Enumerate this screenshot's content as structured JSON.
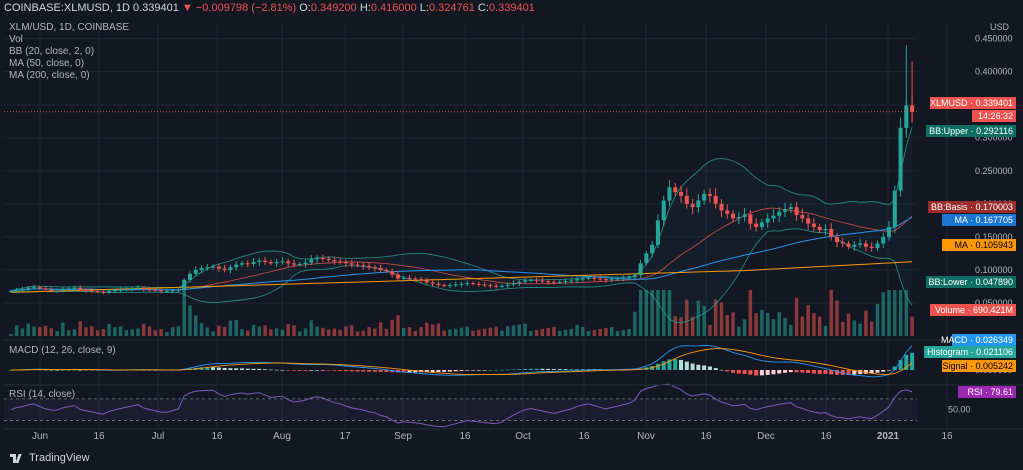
{
  "header": {
    "symbol": "COINBASE:XLMUSD, 1D",
    "last": "0.339401",
    "change": "▼ −0.009798 (−2.81%)",
    "o_label": "O:",
    "o_value": "0.349200",
    "h_label": "H:",
    "h_value": "0.416000",
    "l_label": "L:",
    "l_value": "0.324761",
    "c_label": "C:",
    "c_value": "0.339401"
  },
  "indicators": {
    "title": "XLM/USD, 1D, COINBASE",
    "vol": "Vol",
    "bb": "BB (20, close, 2, 0)",
    "ma50": "MA (50, close, 0)",
    "ma200": "MA (200, close, 0)",
    "macd": "MACD (12, 26, close, 9)",
    "rsi": "RSI (14, close)"
  },
  "branding": "TradingView",
  "colors": {
    "background": "#131722",
    "up": "#26a69a",
    "down": "#ef5350",
    "bb_basis": "#ef5350",
    "bb_band": "#26a69a",
    "ma50": "#2196f3",
    "ma200": "#ff9800",
    "rsi": "#7e57c2",
    "macd_line": "#2196f3",
    "signal_line": "#ff9800"
  },
  "chart_data": [
    {
      "type": "candlestick",
      "name": "price",
      "currency": "USD",
      "x_ticks": [
        "Jun",
        "16",
        "Jul",
        "16",
        "Aug",
        "17",
        "Sep",
        "16",
        "Oct",
        "16",
        "Nov",
        "16",
        "Dec",
        "16",
        "2021",
        "16"
      ],
      "y_ticks": [
        "0.450000",
        "0.400000",
        "0.350000",
        "0.300000",
        "0.250000",
        "0.200000",
        "0.150000",
        "0.100000",
        "0.050000"
      ],
      "ylim": [
        0.0,
        0.46
      ],
      "grid": true,
      "close_series": [
        0.068,
        0.07,
        0.071,
        0.073,
        0.074,
        0.072,
        0.07,
        0.069,
        0.069,
        0.071,
        0.072,
        0.073,
        0.07,
        0.069,
        0.068,
        0.067,
        0.066,
        0.068,
        0.069,
        0.07,
        0.071,
        0.072,
        0.073,
        0.071,
        0.07,
        0.069,
        0.068,
        0.068,
        0.069,
        0.07,
        0.085,
        0.094,
        0.1,
        0.103,
        0.104,
        0.105,
        0.102,
        0.1,
        0.104,
        0.108,
        0.11,
        0.109,
        0.112,
        0.114,
        0.112,
        0.11,
        0.112,
        0.113,
        0.11,
        0.108,
        0.109,
        0.111,
        0.116,
        0.118,
        0.117,
        0.115,
        0.113,
        0.112,
        0.11,
        0.108,
        0.107,
        0.106,
        0.104,
        0.103,
        0.1,
        0.098,
        0.093,
        0.087,
        0.088,
        0.087,
        0.086,
        0.084,
        0.081,
        0.079,
        0.077,
        0.076,
        0.077,
        0.078,
        0.079,
        0.08,
        0.079,
        0.078,
        0.077,
        0.076,
        0.075,
        0.076,
        0.078,
        0.08,
        0.082,
        0.084,
        0.085,
        0.084,
        0.083,
        0.082,
        0.081,
        0.082,
        0.083,
        0.084,
        0.086,
        0.087,
        0.088,
        0.087,
        0.086,
        0.085,
        0.086,
        0.087,
        0.088,
        0.089,
        0.092,
        0.11,
        0.125,
        0.138,
        0.175,
        0.205,
        0.225,
        0.218,
        0.212,
        0.2,
        0.195,
        0.205,
        0.215,
        0.212,
        0.2,
        0.19,
        0.185,
        0.178,
        0.18,
        0.184,
        0.17,
        0.165,
        0.172,
        0.178,
        0.182,
        0.188,
        0.192,
        0.195,
        0.183,
        0.178,
        0.17,
        0.165,
        0.16,
        0.162,
        0.15,
        0.142,
        0.14,
        0.135,
        0.138,
        0.14,
        0.135,
        0.133,
        0.14,
        0.15,
        0.165,
        0.22,
        0.315,
        0.349,
        0.339
      ],
      "overlays": [
        {
          "name": "XLMUSD",
          "value": "0.339401"
        },
        {
          "name": "countdown",
          "value": "14:26:32"
        },
        {
          "name": "BB:Upper",
          "value": "0.292116"
        },
        {
          "name": "BB:Basis",
          "value": "0.170003"
        },
        {
          "name": "MA",
          "value": "0.167705"
        },
        {
          "name": "MA",
          "value": "0.105943"
        },
        {
          "name": "BB:Lower",
          "value": "0.047890"
        },
        {
          "name": "Volume",
          "value": "690.421M"
        }
      ]
    },
    {
      "type": "histogram",
      "name": "MACD",
      "y_ticks": [
        "0.000000"
      ],
      "values": [
        {
          "name": "MACD",
          "value": "0.026349"
        },
        {
          "name": "Histogram",
          "value": "0.021106"
        },
        {
          "name": "Signal",
          "value": "0.005242"
        }
      ]
    },
    {
      "type": "line",
      "name": "RSI",
      "y_ticks": [
        "50.00"
      ],
      "values": [
        {
          "name": "RSI",
          "value": "79.61"
        }
      ]
    }
  ]
}
